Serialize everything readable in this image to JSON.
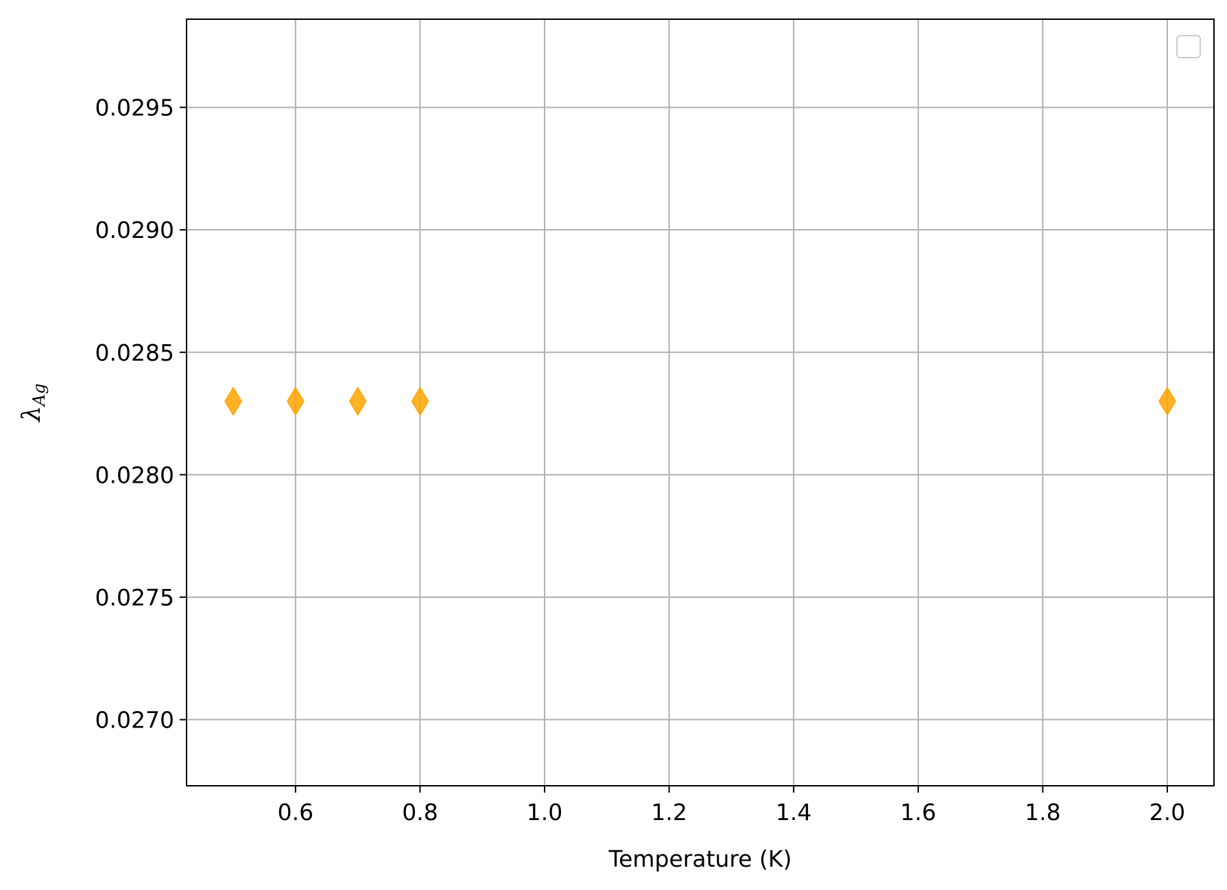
{
  "chart_data": {
    "type": "scatter",
    "xlabel": "Temperature (K)",
    "ylabel": {
      "main": "λ",
      "sub": "Ag"
    },
    "xlim": [
      0.425,
      2.075
    ],
    "ylim": [
      0.02673,
      0.02986
    ],
    "x_ticks": [
      {
        "value": 0.6,
        "label": "0.6"
      },
      {
        "value": 0.8,
        "label": "0.8"
      },
      {
        "value": 1.0,
        "label": "1.0"
      },
      {
        "value": 1.2,
        "label": "1.2"
      },
      {
        "value": 1.4,
        "label": "1.4"
      },
      {
        "value": 1.6,
        "label": "1.6"
      },
      {
        "value": 1.8,
        "label": "1.8"
      },
      {
        "value": 2.0,
        "label": "2.0"
      }
    ],
    "y_ticks": [
      {
        "value": 0.027,
        "label": "0.0270"
      },
      {
        "value": 0.0275,
        "label": "0.0275"
      },
      {
        "value": 0.028,
        "label": "0.0280"
      },
      {
        "value": 0.0285,
        "label": "0.0285"
      },
      {
        "value": 0.029,
        "label": "0.0290"
      },
      {
        "value": 0.0295,
        "label": "0.0295"
      }
    ],
    "grid": true,
    "legend": {
      "placement": "top-right",
      "entries": []
    },
    "marker": "diamond",
    "marker_color": "#FFA500",
    "series": [
      {
        "points": [
          {
            "x": 0.5,
            "y": 0.0283
          },
          {
            "x": 0.6,
            "y": 0.0283
          },
          {
            "x": 0.7,
            "y": 0.0283
          },
          {
            "x": 0.8,
            "y": 0.0283
          },
          {
            "x": 2.0,
            "y": 0.0283
          }
        ]
      }
    ]
  }
}
